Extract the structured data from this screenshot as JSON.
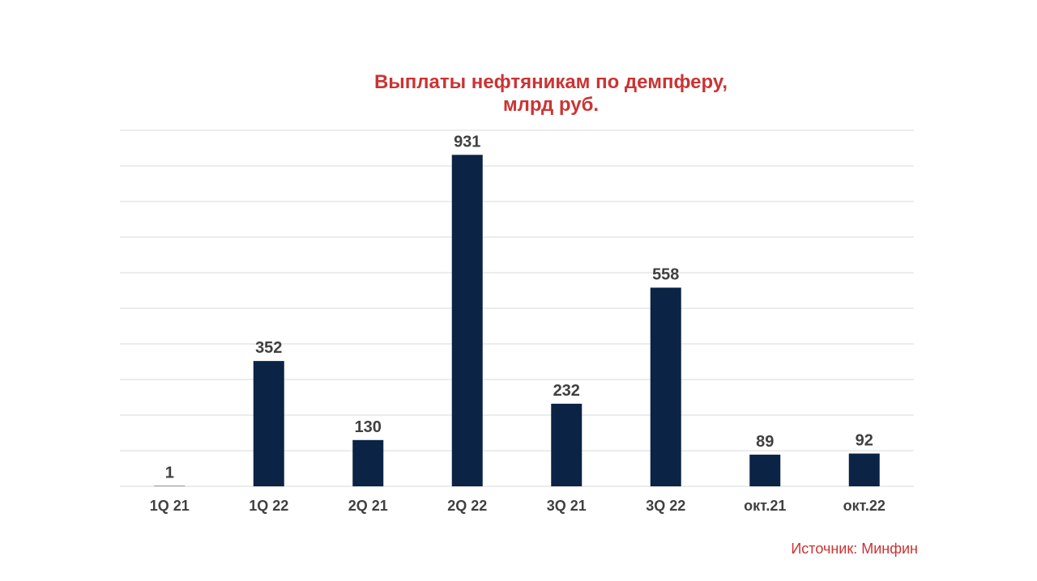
{
  "chart_data": {
    "type": "bar",
    "title_lines": [
      "Выплаты нефтяникам по демпферу,",
      "млрд руб."
    ],
    "categories": [
      "1Q 21",
      "1Q 22",
      "2Q 21",
      "2Q 22",
      "3Q 21",
      "3Q 22",
      "окт.21",
      "окт.22"
    ],
    "values": [
      1,
      352,
      130,
      931,
      232,
      558,
      89,
      92
    ],
    "data_labels": [
      "1",
      "352",
      "130",
      "931",
      "232",
      "558",
      "89",
      "92"
    ],
    "ylim": [
      0,
      1000
    ],
    "y_gridline_step": 100,
    "grid": true,
    "bar_color": "#0b2345",
    "legend": "none"
  },
  "colors": {
    "title": "#cc3333",
    "source": "#cc3333",
    "gridline": "#d9d9d9",
    "label": "#404040"
  },
  "source_note": "Источник: Минфин"
}
